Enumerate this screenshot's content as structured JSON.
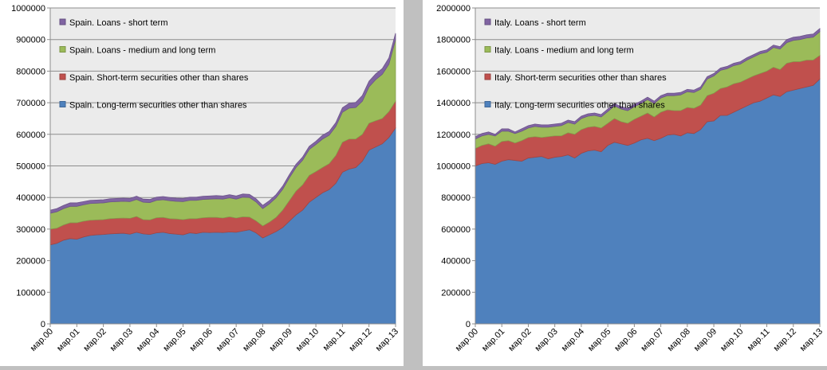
{
  "chart_data": [
    {
      "type": "area",
      "stacked": true,
      "grid": true,
      "legend": "upper left",
      "categories": [
        "мар.00",
        null,
        null,
        null,
        "мар.01",
        null,
        null,
        null,
        "мар.02",
        null,
        null,
        null,
        "мар.03",
        null,
        null,
        null,
        "мар.04",
        null,
        null,
        null,
        "мар.05",
        null,
        null,
        null,
        "мар.06",
        null,
        null,
        null,
        "мар.07",
        null,
        null,
        null,
        "мар.08",
        null,
        null,
        null,
        "мар.09",
        null,
        null,
        null,
        "мар.10",
        null,
        null,
        null,
        "мар.11",
        null,
        null,
        null,
        "мар.12",
        null,
        null,
        null,
        "мар.13"
      ],
      "ylim": [
        0,
        1000000
      ],
      "yticks": [
        0,
        100000,
        200000,
        300000,
        400000,
        500000,
        600000,
        700000,
        800000,
        900000,
        1000000
      ],
      "series": [
        {
          "name": "Spain. Long-term securities other than shares",
          "color": "#4f81bd",
          "values": [
            250000,
            255000,
            265000,
            270000,
            268000,
            275000,
            280000,
            282000,
            283000,
            285000,
            286000,
            287000,
            284000,
            290000,
            285000,
            283000,
            288000,
            290000,
            286000,
            284000,
            282000,
            288000,
            286000,
            290000,
            289000,
            290000,
            289000,
            291000,
            290000,
            294000,
            298000,
            288000,
            272000,
            282000,
            292000,
            305000,
            325000,
            345000,
            360000,
            385000,
            400000,
            415000,
            425000,
            445000,
            480000,
            490000,
            495000,
            515000,
            550000,
            560000,
            570000,
            590000,
            620000
          ]
        },
        {
          "name": "Spain. Short-term securities other than shares",
          "color": "#c0504d",
          "values": [
            50000,
            48000,
            48000,
            50000,
            52000,
            50000,
            48000,
            47000,
            47000,
            48000,
            48000,
            48000,
            50000,
            50000,
            45000,
            46000,
            48000,
            47000,
            47000,
            48000,
            48000,
            45000,
            47000,
            46000,
            48000,
            47000,
            46000,
            48000,
            45000,
            45000,
            40000,
            38000,
            38000,
            40000,
            45000,
            55000,
            65000,
            75000,
            80000,
            85000,
            82000,
            80000,
            82000,
            88000,
            95000,
            95000,
            90000,
            85000,
            85000,
            83000,
            80000,
            82000,
            85000
          ]
        },
        {
          "name": "Spain. Loans - medium and long term",
          "color": "#9bbb59",
          "values": [
            50000,
            52000,
            52000,
            52000,
            52000,
            52000,
            53000,
            53000,
            53000,
            53000,
            53000,
            53000,
            53000,
            54000,
            55000,
            55000,
            55000,
            56000,
            57000,
            56000,
            57000,
            58000,
            58000,
            58000,
            58000,
            59000,
            60000,
            60000,
            60000,
            62000,
            62000,
            60000,
            55000,
            58000,
            62000,
            66000,
            72000,
            75000,
            78000,
            82000,
            86000,
            90000,
            90000,
            92000,
            95000,
            98000,
            100000,
            105000,
            115000,
            130000,
            140000,
            150000,
            195000
          ]
        },
        {
          "name": "Spain. Loans - short term",
          "color": "#8064a2",
          "values": [
            10000,
            10000,
            10000,
            11000,
            11000,
            10000,
            10000,
            10000,
            10000,
            10000,
            10000,
            10000,
            10000,
            10000,
            10000,
            10000,
            10000,
            10000,
            10000,
            10000,
            10000,
            10000,
            10000,
            10000,
            10000,
            10000,
            10000,
            10000,
            10000,
            10000,
            10000,
            10000,
            10000,
            10000,
            10000,
            10000,
            10000,
            10000,
            10000,
            10000,
            10000,
            12000,
            12000,
            12000,
            14000,
            15000,
            16000,
            18000,
            18000,
            18000,
            18000,
            20000,
            20000
          ]
        }
      ]
    },
    {
      "type": "area",
      "stacked": true,
      "grid": true,
      "legend": "upper left",
      "categories": [
        "мар.00",
        null,
        null,
        null,
        "мар.01",
        null,
        null,
        null,
        "мар.02",
        null,
        null,
        null,
        "мар.03",
        null,
        null,
        null,
        "мар.04",
        null,
        null,
        null,
        "мар.05",
        null,
        null,
        null,
        "мар.06",
        null,
        null,
        null,
        "мар.07",
        null,
        null,
        null,
        "мар.08",
        null,
        null,
        null,
        "мар.09",
        null,
        null,
        null,
        "мар.10",
        null,
        null,
        null,
        "мар.11",
        null,
        null,
        null,
        "мар.12",
        null,
        null,
        null,
        "мар.13"
      ],
      "ylim": [
        0,
        2000000
      ],
      "yticks": [
        0,
        200000,
        400000,
        600000,
        800000,
        1000000,
        1200000,
        1400000,
        1600000,
        1800000,
        2000000
      ],
      "series": [
        {
          "name": "Italy. Long-term securities other than shares",
          "color": "#4f81bd",
          "values": [
            1000000,
            1015000,
            1020000,
            1010000,
            1030000,
            1040000,
            1035000,
            1030000,
            1050000,
            1055000,
            1060000,
            1045000,
            1055000,
            1060000,
            1070000,
            1050000,
            1080000,
            1095000,
            1100000,
            1090000,
            1130000,
            1150000,
            1140000,
            1130000,
            1145000,
            1165000,
            1175000,
            1160000,
            1175000,
            1195000,
            1200000,
            1190000,
            1210000,
            1205000,
            1230000,
            1280000,
            1285000,
            1320000,
            1320000,
            1340000,
            1360000,
            1380000,
            1400000,
            1410000,
            1430000,
            1450000,
            1440000,
            1470000,
            1480000,
            1490000,
            1500000,
            1510000,
            1550000
          ]
        },
        {
          "name": "Italy. Short-term securities other than shares",
          "color": "#c0504d",
          "values": [
            110000,
            115000,
            120000,
            115000,
            125000,
            120000,
            110000,
            130000,
            130000,
            130000,
            120000,
            140000,
            135000,
            130000,
            140000,
            150000,
            150000,
            150000,
            150000,
            150000,
            140000,
            150000,
            140000,
            140000,
            150000,
            150000,
            160000,
            150000,
            165000,
            160000,
            150000,
            160000,
            160000,
            160000,
            155000,
            165000,
            175000,
            170000,
            180000,
            180000,
            170000,
            170000,
            170000,
            175000,
            170000,
            175000,
            170000,
            180000,
            180000,
            170000,
            170000,
            160000,
            150000
          ]
        },
        {
          "name": "Italy. Loans - medium and long term",
          "color": "#9bbb59",
          "values": [
            60000,
            60000,
            60000,
            65000,
            65000,
            60000,
            60000,
            60000,
            60000,
            65000,
            65000,
            60000,
            60000,
            65000,
            65000,
            65000,
            70000,
            70000,
            70000,
            70000,
            75000,
            80000,
            80000,
            80000,
            80000,
            80000,
            85000,
            85000,
            90000,
            90000,
            95000,
            100000,
            100000,
            100000,
            100000,
            105000,
            110000,
            115000,
            115000,
            115000,
            115000,
            120000,
            120000,
            125000,
            120000,
            125000,
            130000,
            130000,
            135000,
            140000,
            140000,
            145000,
            150000
          ]
        },
        {
          "name": "Italy. Loans - short term",
          "color": "#8064a2",
          "values": [
            15000,
            15000,
            15000,
            10000,
            15000,
            15000,
            10000,
            15000,
            15000,
            15000,
            15000,
            15000,
            15000,
            15000,
            15000,
            15000,
            15000,
            15000,
            15000,
            15000,
            15000,
            15000,
            15000,
            15000,
            15000,
            15000,
            15000,
            15000,
            15000,
            15000,
            15000,
            15000,
            15000,
            15000,
            15000,
            15000,
            15000,
            15000,
            15000,
            15000,
            15000,
            15000,
            15000,
            15000,
            15000,
            15000,
            15000,
            20000,
            20000,
            20000,
            20000,
            20000,
            20000
          ]
        }
      ]
    }
  ]
}
